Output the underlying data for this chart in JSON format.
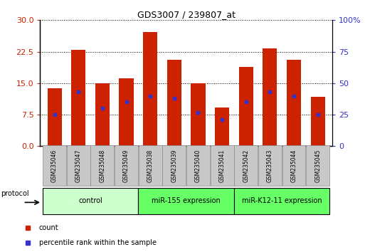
{
  "title": "GDS3007 / 239807_at",
  "samples": [
    "GSM235046",
    "GSM235047",
    "GSM235048",
    "GSM235049",
    "GSM235038",
    "GSM235039",
    "GSM235040",
    "GSM235041",
    "GSM235042",
    "GSM235043",
    "GSM235044",
    "GSM235045"
  ],
  "counts": [
    13.8,
    23.0,
    15.0,
    16.2,
    27.2,
    20.5,
    15.0,
    9.2,
    18.8,
    23.2,
    20.5,
    11.8
  ],
  "percentile_ranks": [
    25,
    43,
    30,
    35,
    40,
    38,
    27,
    21,
    35,
    43,
    40,
    25
  ],
  "groups": [
    {
      "label": "control",
      "start": 0,
      "end": 4,
      "color": "#ccffcc"
    },
    {
      "label": "miR-155 expression",
      "start": 4,
      "end": 8,
      "color": "#66ff66"
    },
    {
      "label": "miR-K12-11 expression",
      "start": 8,
      "end": 12,
      "color": "#66ff66"
    }
  ],
  "bar_color": "#cc2200",
  "marker_color": "#3333cc",
  "left_yticks": [
    0,
    7.5,
    15,
    22.5,
    30
  ],
  "right_yticks": [
    0,
    25,
    50,
    75,
    100
  ],
  "left_color": "#cc2200",
  "right_color": "#3333cc",
  "ylim_left": [
    0,
    30
  ],
  "ylim_right": [
    0,
    100
  ],
  "bar_width": 0.6,
  "legend_count_label": "count",
  "legend_percentile_label": "percentile rank within the sample",
  "protocol_label": "protocol",
  "bg_color": "#ffffff",
  "plot_bg": "#ffffff",
  "label_box_color": "#c8c8c8",
  "group_colors": [
    "#ccffcc",
    "#66ff66",
    "#66ff66"
  ]
}
